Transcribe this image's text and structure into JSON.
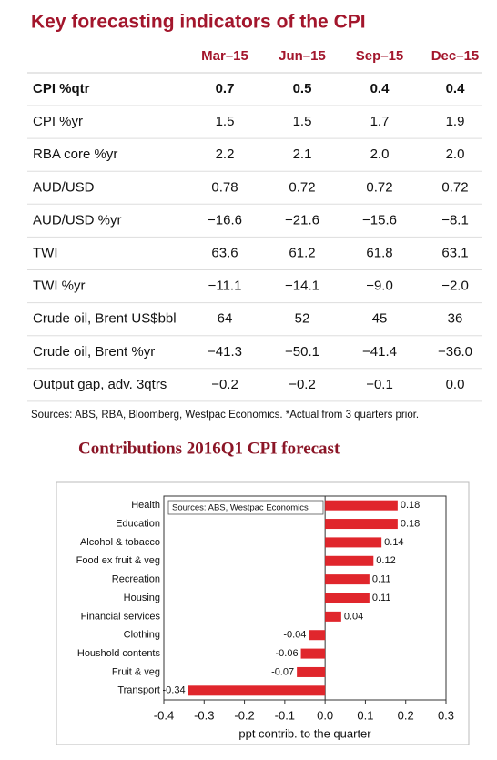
{
  "title": "Key forecasting indicators of the CPI",
  "table": {
    "columns": [
      "Mar–15",
      "Jun–15",
      "Sep–15",
      "Dec–15"
    ],
    "rows": [
      {
        "label": "CPI %qtr",
        "values": [
          "0.7",
          "0.5",
          "0.4",
          "0.4"
        ]
      },
      {
        "label": "CPI %yr",
        "values": [
          "1.5",
          "1.5",
          "1.7",
          "1.9"
        ]
      },
      {
        "label": "RBA core %yr",
        "values": [
          "2.2",
          "2.1",
          "2.0",
          "2.0"
        ]
      },
      {
        "label": "AUD/USD",
        "values": [
          "0.78",
          "0.72",
          "0.72",
          "0.72"
        ]
      },
      {
        "label": "AUD/USD %yr",
        "values": [
          "−16.6",
          "−21.6",
          "−15.6",
          "−8.1"
        ]
      },
      {
        "label": "TWI",
        "values": [
          "63.6",
          "61.2",
          "61.8",
          "63.1"
        ]
      },
      {
        "label": "TWI %yr",
        "values": [
          "−11.1",
          "−14.1",
          "−9.0",
          "−2.0"
        ]
      },
      {
        "label": "Crude oil, Brent US$bbl",
        "values": [
          "64",
          "52",
          "45",
          "36"
        ]
      },
      {
        "label": "Crude oil, Brent %yr",
        "values": [
          "−41.3",
          "−50.1",
          "−41.4",
          "−36.0"
        ]
      },
      {
        "label": "Output gap, adv. 3qtrs",
        "values": [
          "−0.2",
          "−0.2",
          "−0.1",
          "0.0"
        ]
      }
    ],
    "sources": "Sources: ABS, RBA, Bloomberg, Westpac Economics. *Actual from 3 quarters prior."
  },
  "chart_data": {
    "type": "bar",
    "orientation": "horizontal",
    "title": "Contributions 2016Q1 CPI forecast",
    "note": "Sources: ABS, Westpac Economics",
    "xlabel": "ppt contrib. to the quarter",
    "categories": [
      "Health",
      "Education",
      "Alcohol & tobacco",
      "Food ex fruit & veg",
      "Recreation",
      "Housing",
      "Financial services",
      "Clothing",
      "Houshold contents",
      "Fruit & veg",
      "Transport"
    ],
    "values": [
      0.18,
      0.18,
      0.14,
      0.12,
      0.11,
      0.11,
      0.04,
      -0.04,
      -0.06,
      -0.07,
      -0.34
    ],
    "color": "#e0262c",
    "xlim": [
      -0.4,
      0.3
    ],
    "xticks": [
      -0.4,
      -0.3,
      -0.2,
      -0.1,
      {
        "value": 0,
        "label": "0.0"
      },
      0.1,
      0.2,
      0.3
    ]
  }
}
